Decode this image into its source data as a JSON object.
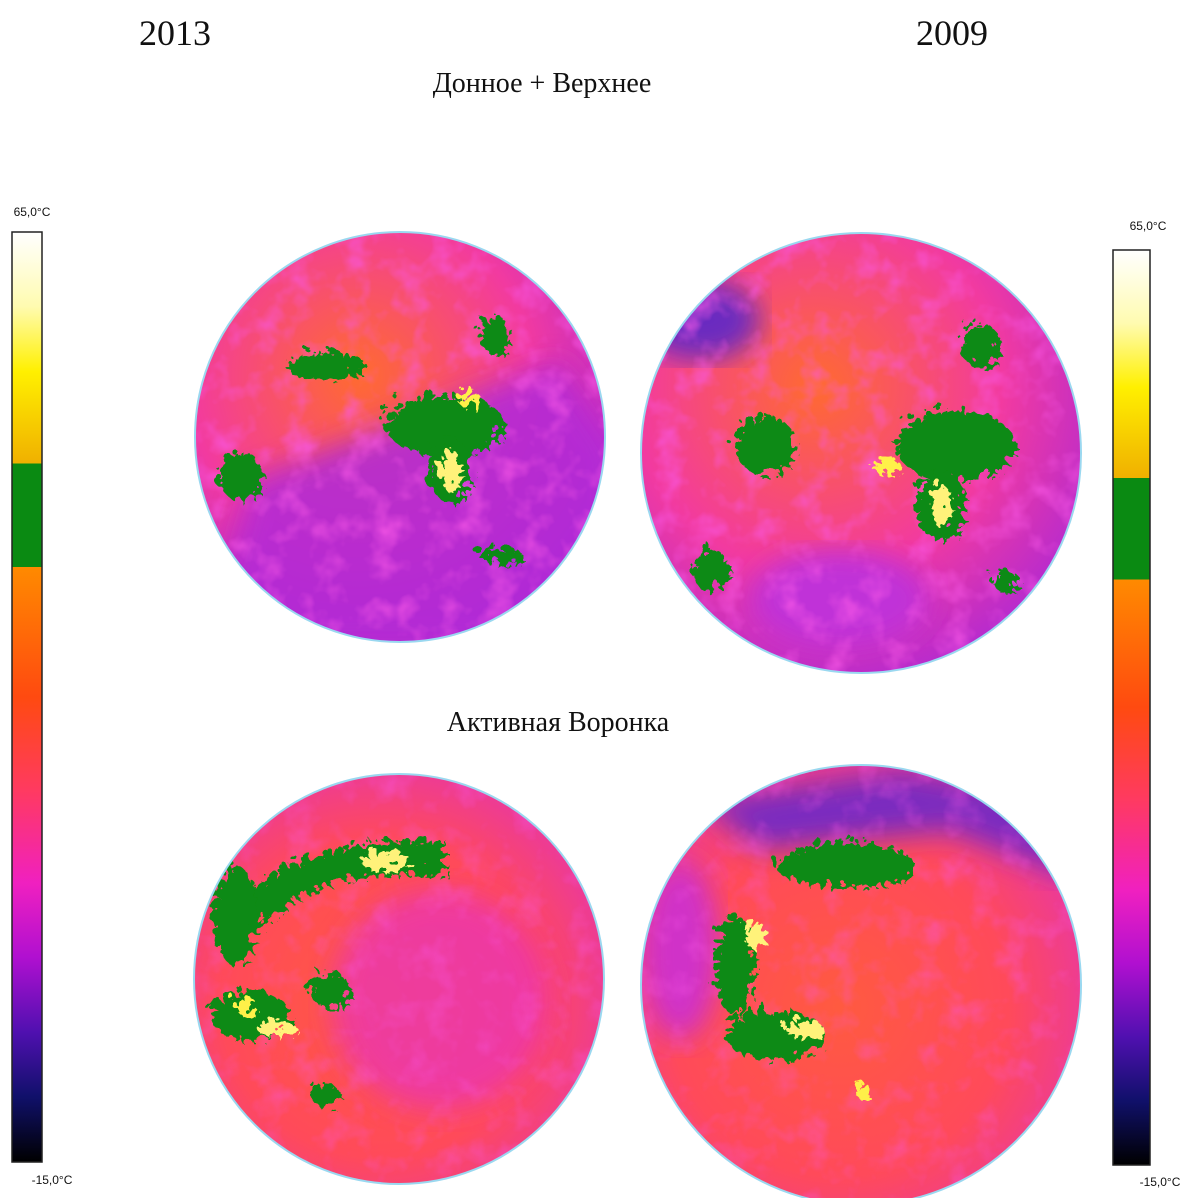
{
  "headings": {
    "year_left": "2013",
    "year_right": "2009",
    "top_row": "Донное + Верхнее",
    "bottom_row": "Активная Воронка"
  },
  "scales": [
    {
      "max": "65,0°C",
      "min": "-15,0°C"
    },
    {
      "max": "65,0°C",
      "min": "-15,0°C"
    }
  ]
}
